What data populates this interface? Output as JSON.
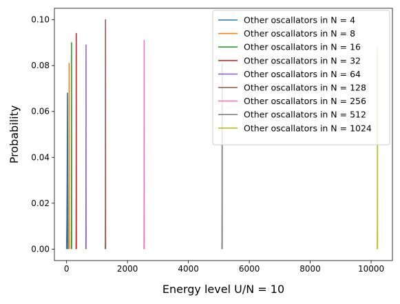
{
  "chart_data": {
    "type": "line",
    "xlabel": "Energy level U/N = 10",
    "ylabel": "Probability",
    "xlim": [
      -400,
      10700
    ],
    "ylim": [
      -0.005,
      0.105
    ],
    "xticks": [
      0,
      2000,
      4000,
      6000,
      8000,
      10000
    ],
    "xtick_labels": [
      "0",
      "2000",
      "4000",
      "6000",
      "8000",
      "10000"
    ],
    "yticks": [
      0.0,
      0.02,
      0.04,
      0.06,
      0.08,
      0.1
    ],
    "ytick_labels": [
      "0.00",
      "0.02",
      "0.04",
      "0.06",
      "0.08",
      "0.10"
    ],
    "grid": false,
    "legend_position": "top-right",
    "series": [
      {
        "name": "Other oscallators in N = 4",
        "color": "#1f77b4",
        "x": [
          0,
          10,
          20,
          30,
          40
        ],
        "y": [
          0.0,
          0.012,
          0.035,
          0.068,
          0.0
        ]
      },
      {
        "name": "Other oscallators in N = 8",
        "color": "#ff7f0e",
        "x": [
          70,
          75,
          80,
          85,
          90
        ],
        "y": [
          0.0,
          0.009,
          0.03,
          0.081,
          0.0
        ]
      },
      {
        "name": "Other oscallators in N = 16",
        "color": "#2ca02c",
        "x": [
          155,
          158,
          161,
          164,
          167
        ],
        "y": [
          0.0,
          0.01,
          0.035,
          0.09,
          0.0
        ]
      },
      {
        "name": "Other oscallators in N = 32",
        "color": "#d62728",
        "x": [
          310,
          313,
          316,
          319,
          322
        ],
        "y": [
          0.0,
          0.003,
          0.02,
          0.094,
          0.0
        ]
      },
      {
        "name": "Other oscallators in N = 64",
        "color": "#9467bd",
        "x": [
          630,
          633,
          636,
          639,
          642
        ],
        "y": [
          0.0,
          0.003,
          0.02,
          0.089,
          0.0
        ]
      },
      {
        "name": "Other oscallators in N = 128",
        "color": "#8c564b",
        "x": [
          1270,
          1273,
          1276,
          1279,
          1282
        ],
        "y": [
          0.0,
          0.002,
          0.02,
          0.1,
          0.0
        ]
      },
      {
        "name": "Other oscallators in N = 256",
        "color": "#e377c2",
        "x": [
          2540,
          2543,
          2546,
          2549,
          2552
        ],
        "y": [
          0.0,
          0.002,
          0.02,
          0.091,
          0.0
        ]
      },
      {
        "name": "Other oscallators in N = 512",
        "color": "#7f7f7f",
        "x": [
          5100,
          5103,
          5106,
          5109,
          5112
        ],
        "y": [
          0.0,
          0.003,
          0.03,
          0.081,
          0.0
        ]
      },
      {
        "name": "Other oscallators in N = 1024",
        "color": "#bcbd22",
        "x": [
          10200,
          10203,
          10206,
          10209,
          10212
        ],
        "y": [
          0.0,
          0.002,
          0.016,
          0.088,
          0.0
        ]
      }
    ]
  }
}
